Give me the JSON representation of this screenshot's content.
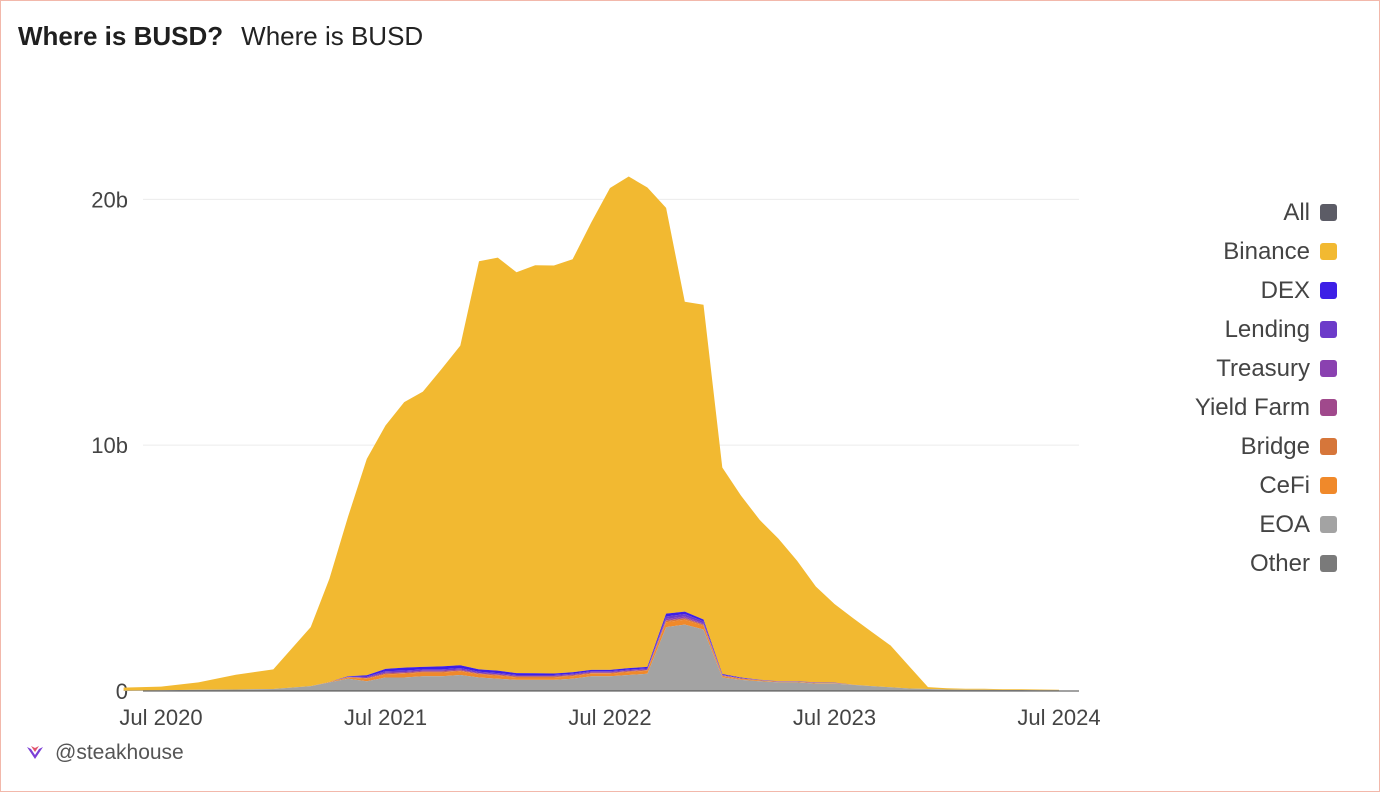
{
  "header": {
    "title": "Where is BUSD?",
    "subtitle": "Where is BUSD"
  },
  "footer": {
    "handle": "@steakhouse",
    "logo_icon": "steakhouse-logo-icon"
  },
  "chart_data": {
    "type": "area",
    "stacked": true,
    "title": "Where is BUSD?",
    "subtitle": "Where is BUSD",
    "xlabel": "",
    "ylabel": "",
    "x_tick_labels": [
      "Jul 2020",
      "Jul 2021",
      "Jul 2022",
      "Jul 2023",
      "Jul 2024"
    ],
    "y_tick_labels": [
      "0",
      "10b",
      "20b"
    ],
    "y_ticks": [
      0,
      10,
      20
    ],
    "ylim": [
      0,
      24
    ],
    "xlim": [
      "2020-07",
      "2024-07"
    ],
    "grid": true,
    "legend_position": "right",
    "x": [
      "2020-05",
      "2020-07",
      "2020-09",
      "2020-11",
      "2021-01",
      "2021-03",
      "2021-04",
      "2021-05",
      "2021-06",
      "2021-07",
      "2021-08",
      "2021-09",
      "2021-10",
      "2021-11",
      "2021-12",
      "2022-01",
      "2022-02",
      "2022-03",
      "2022-04",
      "2022-05",
      "2022-06",
      "2022-07",
      "2022-08",
      "2022-09",
      "2022-10",
      "2022-11",
      "2022-12",
      "2023-01",
      "2023-02",
      "2023-03",
      "2023-04",
      "2023-05",
      "2023-06",
      "2023-07",
      "2023-08",
      "2023-09",
      "2023-10",
      "2023-11",
      "2023-12",
      "2024-01",
      "2024-02",
      "2024-03",
      "2024-04",
      "2024-05",
      "2024-06",
      "2024-07"
    ],
    "series": [
      {
        "name": "All",
        "color": "#5c5c66",
        "values": [
          0,
          0,
          0,
          0,
          0,
          0,
          0,
          0,
          0,
          0,
          0,
          0,
          0,
          0,
          0,
          0,
          0,
          0,
          0,
          0,
          0,
          0,
          0,
          0,
          0,
          0,
          0,
          0,
          0,
          0,
          0,
          0,
          0,
          0,
          0,
          0,
          0,
          0,
          0,
          0,
          0,
          0,
          0,
          0,
          0,
          0
        ]
      },
      {
        "name": "Binance",
        "color": "#f2b931",
        "values": [
          0.12,
          0.15,
          0.3,
          0.6,
          0.8,
          2.4,
          4.2,
          6.5,
          8.8,
          9.9,
          10.8,
          11.2,
          12.1,
          13.0,
          16.6,
          16.8,
          16.3,
          16.6,
          16.6,
          16.8,
          18.2,
          19.6,
          20.0,
          19.5,
          16.5,
          12.6,
          12.8,
          8.4,
          7.4,
          6.5,
          5.8,
          4.9,
          3.9,
          3.2,
          2.7,
          2.2,
          1.7,
          0.9,
          0.08,
          0.05,
          0.04,
          0.04,
          0.03,
          0.03,
          0.03,
          0.02
        ]
      },
      {
        "name": "DEX",
        "color": "#3d1fe6",
        "values": [
          0,
          0,
          0,
          0,
          0,
          0,
          0,
          0.02,
          0.05,
          0.1,
          0.12,
          0.1,
          0.12,
          0.12,
          0.1,
          0.1,
          0.08,
          0.07,
          0.06,
          0.06,
          0.06,
          0.06,
          0.06,
          0.06,
          0.12,
          0.1,
          0.08,
          0.03,
          0.02,
          0.01,
          0.01,
          0.01,
          0.01,
          0.01,
          0,
          0,
          0,
          0,
          0,
          0,
          0,
          0,
          0,
          0,
          0,
          0
        ]
      },
      {
        "name": "Lending",
        "color": "#6c3bc9",
        "values": [
          0,
          0,
          0,
          0,
          0,
          0,
          0,
          0.01,
          0.04,
          0.06,
          0.06,
          0.06,
          0.06,
          0.06,
          0.05,
          0.05,
          0.04,
          0.04,
          0.04,
          0.04,
          0.04,
          0.04,
          0.04,
          0.04,
          0.1,
          0.1,
          0.08,
          0.02,
          0.02,
          0.01,
          0.01,
          0.01,
          0.01,
          0.01,
          0,
          0,
          0,
          0,
          0,
          0,
          0,
          0,
          0,
          0,
          0,
          0
        ]
      },
      {
        "name": "Treasury",
        "color": "#8a41b0",
        "values": [
          0,
          0,
          0,
          0,
          0,
          0,
          0,
          0,
          0,
          0,
          0,
          0,
          0,
          0,
          0,
          0,
          0,
          0,
          0,
          0,
          0,
          0,
          0,
          0,
          0.05,
          0.05,
          0.04,
          0.01,
          0,
          0,
          0,
          0,
          0,
          0,
          0,
          0,
          0,
          0,
          0,
          0,
          0,
          0,
          0,
          0,
          0,
          0
        ]
      },
      {
        "name": "Yield Farm",
        "color": "#a0498c",
        "values": [
          0,
          0,
          0,
          0,
          0,
          0,
          0,
          0.01,
          0.03,
          0.04,
          0.04,
          0.04,
          0.04,
          0.04,
          0.03,
          0.03,
          0.03,
          0.03,
          0.03,
          0.03,
          0.03,
          0.03,
          0.03,
          0.03,
          0.03,
          0.03,
          0.02,
          0.01,
          0,
          0,
          0,
          0,
          0,
          0,
          0,
          0,
          0,
          0,
          0,
          0,
          0,
          0,
          0,
          0,
          0,
          0
        ]
      },
      {
        "name": "Bridge",
        "color": "#d6763a",
        "values": [
          0,
          0,
          0,
          0,
          0,
          0,
          0,
          0.01,
          0.02,
          0.03,
          0.03,
          0.03,
          0.03,
          0.03,
          0.03,
          0.03,
          0.03,
          0.03,
          0.03,
          0.03,
          0.03,
          0.03,
          0.03,
          0.03,
          0.05,
          0.05,
          0.04,
          0.02,
          0.02,
          0.01,
          0.01,
          0.01,
          0.01,
          0.01,
          0,
          0,
          0,
          0,
          0,
          0,
          0,
          0,
          0,
          0,
          0,
          0
        ]
      },
      {
        "name": "CeFi",
        "color": "#f0892a",
        "values": [
          0,
          0,
          0,
          0,
          0,
          0,
          0.02,
          0.05,
          0.1,
          0.12,
          0.15,
          0.15,
          0.15,
          0.15,
          0.12,
          0.12,
          0.1,
          0.1,
          0.1,
          0.1,
          0.1,
          0.1,
          0.12,
          0.12,
          0.2,
          0.2,
          0.15,
          0.05,
          0.04,
          0.03,
          0.02,
          0.02,
          0.02,
          0.01,
          0.01,
          0,
          0,
          0,
          0,
          0,
          0,
          0,
          0,
          0,
          0,
          0
        ]
      },
      {
        "name": "EOA",
        "color": "#a3a3a3",
        "values": [
          0.02,
          0.03,
          0.05,
          0.06,
          0.08,
          0.2,
          0.35,
          0.5,
          0.4,
          0.55,
          0.55,
          0.6,
          0.6,
          0.65,
          0.55,
          0.5,
          0.45,
          0.45,
          0.45,
          0.5,
          0.6,
          0.6,
          0.65,
          0.7,
          2.6,
          2.7,
          2.5,
          0.55,
          0.45,
          0.4,
          0.35,
          0.35,
          0.3,
          0.3,
          0.25,
          0.2,
          0.15,
          0.1,
          0.08,
          0.06,
          0.05,
          0.05,
          0.04,
          0.04,
          0.03,
          0.03
        ]
      },
      {
        "name": "Other",
        "color": "#7a7a7a",
        "values": [
          0,
          0,
          0,
          0,
          0,
          0,
          0,
          0,
          0,
          0,
          0,
          0,
          0,
          0,
          0,
          0,
          0,
          0,
          0,
          0,
          0,
          0,
          0,
          0,
          0,
          0,
          0,
          0,
          0,
          0,
          0,
          0,
          0,
          0,
          0,
          0,
          0,
          0,
          0,
          0,
          0,
          0,
          0,
          0,
          0,
          0
        ]
      }
    ]
  }
}
